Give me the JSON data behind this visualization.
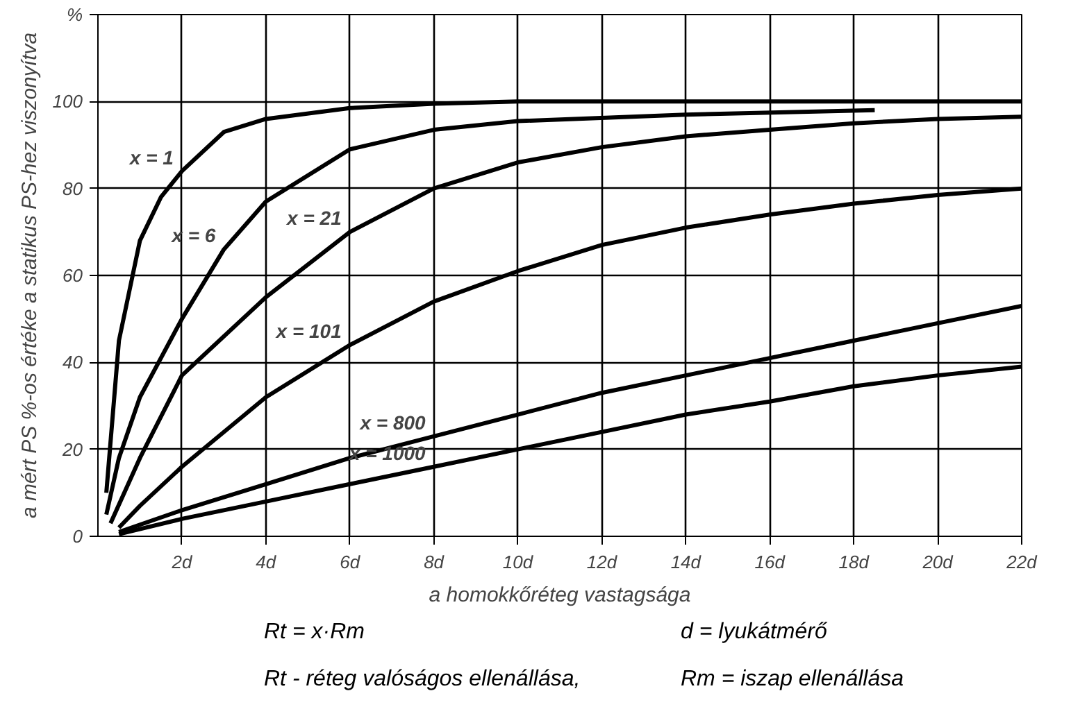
{
  "chart_data": {
    "type": "line",
    "xlabel": "a homokkőréteg vastagsága",
    "ylabel": "a mért PS %-os értéke a statikus PS-hez viszonyítva",
    "xlim": [
      0,
      22
    ],
    "ylim": [
      0,
      120
    ],
    "xticks": [
      {
        "value": 2,
        "label": "2d"
      },
      {
        "value": 4,
        "label": "4d"
      },
      {
        "value": 6,
        "label": "6d"
      },
      {
        "value": 8,
        "label": "8d"
      },
      {
        "value": 10,
        "label": "10d"
      },
      {
        "value": 12,
        "label": "12d"
      },
      {
        "value": 14,
        "label": "14d"
      },
      {
        "value": 16,
        "label": "16d"
      },
      {
        "value": 18,
        "label": "18d"
      },
      {
        "value": 20,
        "label": "20d"
      },
      {
        "value": 22,
        "label": "22d"
      }
    ],
    "yticks": [
      0,
      20,
      40,
      60,
      80,
      100,
      {
        "value": 120,
        "label": "%"
      }
    ],
    "grid": true,
    "marker": "none",
    "line_style": "solid",
    "series": [
      {
        "name": "x = 1",
        "color": "#000000",
        "x": [
          0.2,
          0.5,
          1,
          1.5,
          2,
          3,
          4,
          6,
          8,
          10,
          14,
          18,
          22
        ],
        "values": [
          10,
          45,
          68,
          78,
          84,
          93,
          96,
          98.5,
          99.5,
          100,
          100,
          100,
          100
        ]
      },
      {
        "name": "x = 6",
        "color": "#000000",
        "x": [
          0.2,
          0.5,
          1,
          2,
          3,
          4,
          6,
          8,
          10,
          14,
          18.5
        ],
        "values": [
          5,
          18,
          32,
          50,
          66,
          77,
          89,
          93.5,
          95.5,
          97,
          98
        ]
      },
      {
        "name": "x = 21",
        "color": "#000000",
        "x": [
          0.3,
          1,
          2,
          4,
          6,
          8,
          10,
          12,
          14,
          16,
          18,
          20,
          22
        ],
        "values": [
          3,
          18,
          37,
          55,
          70,
          80,
          86,
          89.5,
          92,
          93.5,
          95,
          96,
          96.5
        ]
      },
      {
        "name": "x = 101",
        "color": "#000000",
        "x": [
          0.5,
          1,
          2,
          4,
          6,
          8,
          10,
          12,
          14,
          16,
          18,
          20,
          22
        ],
        "values": [
          2,
          7,
          16,
          32,
          44,
          54,
          61,
          67,
          71,
          74,
          76.5,
          78.5,
          80
        ]
      },
      {
        "name": "x = 800",
        "color": "#000000",
        "x": [
          0.5,
          2,
          4,
          6,
          8,
          10,
          12,
          14,
          16,
          18,
          20,
          22
        ],
        "values": [
          1,
          6,
          12,
          18,
          23,
          28,
          33,
          37,
          41,
          45,
          49,
          53
        ]
      },
      {
        "name": "x = 1000",
        "color": "#000000",
        "x": [
          0.5,
          2,
          4,
          6,
          8,
          10,
          12,
          14,
          16,
          18,
          20,
          22
        ],
        "values": [
          0.5,
          4,
          8,
          12,
          16,
          20,
          24,
          28,
          31,
          34.5,
          37,
          39
        ]
      }
    ],
    "annotations": [
      "Rt = x·Rm",
      "d = lyukátmérő",
      "Rt - réteg valóságos ellenállása,",
      "Rm = iszap ellenállása"
    ]
  }
}
